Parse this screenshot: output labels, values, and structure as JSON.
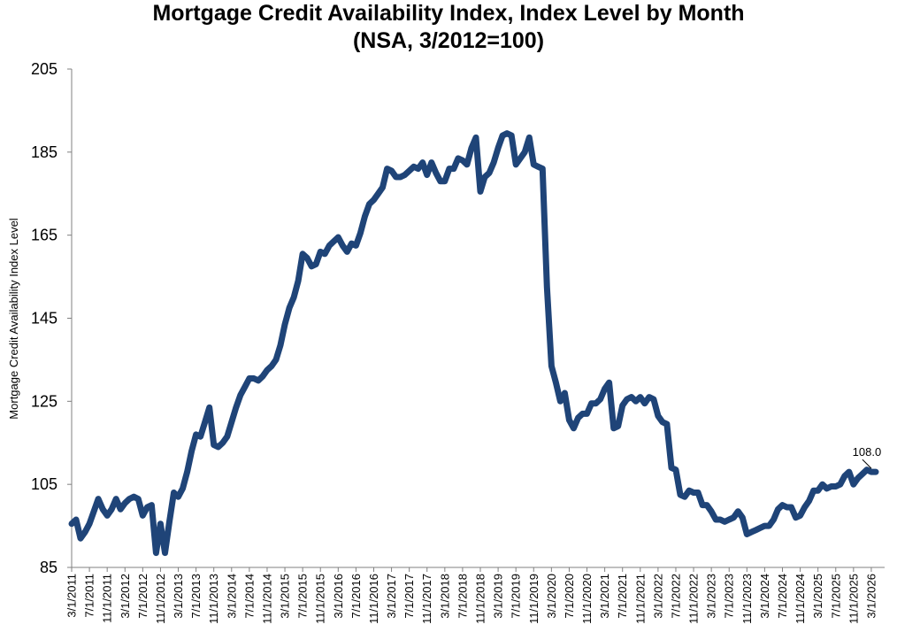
{
  "chart_data": {
    "type": "line",
    "title": "Mortgage Credit Availability Index, Index Level by Month",
    "subtitle": "(NSA, 3/2012=100)",
    "ylabel": "Mortgage Credit Availability Index Level",
    "xlabel": "",
    "ylim": [
      85,
      205
    ],
    "yticks": [
      "85",
      "105",
      "125",
      "145",
      "165",
      "185",
      "205"
    ],
    "grid": false,
    "legend": "none",
    "line_color": "#1f4478",
    "xlim": [
      "2011-03",
      "2026-06"
    ],
    "x_tick_labels": [
      "3/1/2011",
      "7/1/2011",
      "11/1/2011",
      "3/1/2012",
      "7/1/2012",
      "11/1/2012",
      "3/1/2013",
      "7/1/2013",
      "11/1/2013",
      "3/1/2014",
      "7/1/2014",
      "11/1/2014",
      "3/1/2015",
      "7/1/2015",
      "11/1/2015",
      "3/1/2016",
      "7/1/2016",
      "11/1/2016",
      "3/1/2017",
      "7/1/2017",
      "11/1/2017",
      "3/1/2018",
      "7/1/2018",
      "11/1/2018",
      "3/1/2019",
      "7/1/2019",
      "11/1/2019",
      "3/1/2020",
      "7/1/2020",
      "11/1/2020",
      "3/1/2021",
      "7/1/2021",
      "11/1/2021",
      "3/1/2022",
      "7/1/2022",
      "11/1/2022",
      "3/1/2023",
      "7/1/2023",
      "11/1/2023",
      "3/1/2024",
      "7/1/2024",
      "11/1/2024",
      "3/1/2025",
      "7/1/2025",
      "11/1/2025",
      "3/1/2026"
    ],
    "x_tick_dates": [
      "2011-03",
      "2011-07",
      "2011-11",
      "2012-03",
      "2012-07",
      "2012-11",
      "2013-03",
      "2013-07",
      "2013-11",
      "2014-03",
      "2014-07",
      "2014-11",
      "2015-03",
      "2015-07",
      "2015-11",
      "2016-03",
      "2016-07",
      "2016-11",
      "2017-03",
      "2017-07",
      "2017-11",
      "2018-03",
      "2018-07",
      "2018-11",
      "2019-03",
      "2019-07",
      "2019-11",
      "2020-03",
      "2020-07",
      "2020-11",
      "2021-03",
      "2021-07",
      "2021-11",
      "2022-03",
      "2022-07",
      "2022-11",
      "2023-03",
      "2023-07",
      "2023-11",
      "2024-03",
      "2024-07",
      "2024-11",
      "2025-03",
      "2025-07",
      "2025-11",
      "2026-03"
    ],
    "series": [
      {
        "points": [
          [
            "2011-03",
            95.5
          ],
          [
            "2011-04",
            96.5
          ],
          [
            "2011-05",
            92.0
          ],
          [
            "2011-06",
            93.5
          ],
          [
            "2011-07",
            95.5
          ],
          [
            "2011-08",
            98.5
          ],
          [
            "2011-09",
            101.5
          ],
          [
            "2011-10",
            99.0
          ],
          [
            "2011-11",
            97.5
          ],
          [
            "2011-12",
            99.0
          ],
          [
            "2012-01",
            101.5
          ],
          [
            "2012-02",
            99.0
          ],
          [
            "2012-03",
            100.5
          ],
          [
            "2012-04",
            101.5
          ],
          [
            "2012-05",
            102.0
          ],
          [
            "2012-06",
            101.5
          ],
          [
            "2012-07",
            97.5
          ],
          [
            "2012-08",
            99.5
          ],
          [
            "2012-09",
            100.0
          ],
          [
            "2012-10",
            88.5
          ],
          [
            "2012-11",
            95.5
          ],
          [
            "2012-12",
            88.5
          ],
          [
            "2013-01",
            96.0
          ],
          [
            "2013-02",
            103.0
          ],
          [
            "2013-03",
            102.0
          ],
          [
            "2013-04",
            104.0
          ],
          [
            "2013-05",
            108.0
          ],
          [
            "2013-06",
            113.0
          ],
          [
            "2013-07",
            117.0
          ],
          [
            "2013-08",
            116.5
          ],
          [
            "2013-09",
            120.0
          ],
          [
            "2013-10",
            123.5
          ],
          [
            "2013-11",
            114.5
          ],
          [
            "2013-12",
            114.0
          ],
          [
            "2014-01",
            115.0
          ],
          [
            "2014-02",
            116.5
          ],
          [
            "2014-03",
            120.0
          ],
          [
            "2014-04",
            123.5
          ],
          [
            "2014-05",
            126.5
          ],
          [
            "2014-06",
            128.5
          ],
          [
            "2014-07",
            130.5
          ],
          [
            "2014-08",
            130.5
          ],
          [
            "2014-09",
            130.0
          ],
          [
            "2014-10",
            131.0
          ],
          [
            "2014-11",
            132.5
          ],
          [
            "2014-12",
            133.5
          ],
          [
            "2015-01",
            135.0
          ],
          [
            "2015-02",
            138.5
          ],
          [
            "2015-03",
            143.5
          ],
          [
            "2015-04",
            147.5
          ],
          [
            "2015-05",
            150.0
          ],
          [
            "2015-06",
            154.0
          ],
          [
            "2015-07",
            160.5
          ],
          [
            "2015-08",
            159.5
          ],
          [
            "2015-09",
            157.5
          ],
          [
            "2015-10",
            158.0
          ],
          [
            "2015-11",
            161.0
          ],
          [
            "2015-12",
            160.5
          ],
          [
            "2016-01",
            162.5
          ],
          [
            "2016-02",
            163.5
          ],
          [
            "2016-03",
            164.5
          ],
          [
            "2016-04",
            162.5
          ],
          [
            "2016-05",
            161.0
          ],
          [
            "2016-06",
            163.0
          ],
          [
            "2016-07",
            162.5
          ],
          [
            "2016-08",
            165.5
          ],
          [
            "2016-09",
            169.5
          ],
          [
            "2016-10",
            172.5
          ],
          [
            "2016-11",
            173.5
          ],
          [
            "2016-12",
            175.0
          ],
          [
            "2017-01",
            176.5
          ],
          [
            "2017-02",
            181.0
          ],
          [
            "2017-03",
            180.5
          ],
          [
            "2017-04",
            179.0
          ],
          [
            "2017-05",
            179.0
          ],
          [
            "2017-06",
            179.5
          ],
          [
            "2017-07",
            180.5
          ],
          [
            "2017-08",
            181.5
          ],
          [
            "2017-09",
            181.0
          ],
          [
            "2017-10",
            182.5
          ],
          [
            "2017-11",
            179.5
          ],
          [
            "2017-12",
            182.5
          ],
          [
            "2018-01",
            180.0
          ],
          [
            "2018-02",
            178.0
          ],
          [
            "2018-03",
            178.0
          ],
          [
            "2018-04",
            181.0
          ],
          [
            "2018-05",
            181.0
          ],
          [
            "2018-06",
            183.5
          ],
          [
            "2018-07",
            183.0
          ],
          [
            "2018-08",
            182.0
          ],
          [
            "2018-09",
            186.0
          ],
          [
            "2018-10",
            188.5
          ],
          [
            "2018-11",
            175.5
          ],
          [
            "2018-12",
            179.0
          ],
          [
            "2019-01",
            180.0
          ],
          [
            "2019-02",
            182.5
          ],
          [
            "2019-03",
            186.0
          ],
          [
            "2019-04",
            189.0
          ],
          [
            "2019-05",
            189.5
          ],
          [
            "2019-06",
            189.0
          ],
          [
            "2019-07",
            182.0
          ],
          [
            "2019-08",
            183.5
          ],
          [
            "2019-09",
            185.0
          ],
          [
            "2019-10",
            188.5
          ],
          [
            "2019-11",
            182.0
          ],
          [
            "2019-12",
            181.5
          ],
          [
            "2020-01",
            181.0
          ],
          [
            "2020-02",
            152.5
          ],
          [
            "2020-03",
            133.5
          ],
          [
            "2020-04",
            129.5
          ],
          [
            "2020-05",
            125.0
          ],
          [
            "2020-06",
            127.0
          ],
          [
            "2020-07",
            120.5
          ],
          [
            "2020-08",
            118.5
          ],
          [
            "2020-09",
            121.0
          ],
          [
            "2020-10",
            122.0
          ],
          [
            "2020-11",
            122.0
          ],
          [
            "2020-12",
            124.5
          ],
          [
            "2021-01",
            124.5
          ],
          [
            "2021-02",
            125.5
          ],
          [
            "2021-03",
            128.0
          ],
          [
            "2021-04",
            129.5
          ],
          [
            "2021-05",
            118.5
          ],
          [
            "2021-06",
            119.0
          ],
          [
            "2021-07",
            124.0
          ],
          [
            "2021-08",
            125.5
          ],
          [
            "2021-09",
            126.0
          ],
          [
            "2021-10",
            125.0
          ],
          [
            "2021-11",
            126.0
          ],
          [
            "2021-12",
            124.5
          ],
          [
            "2022-01",
            126.0
          ],
          [
            "2022-02",
            125.5
          ],
          [
            "2022-03",
            121.5
          ],
          [
            "2022-04",
            120.0
          ],
          [
            "2022-05",
            119.5
          ],
          [
            "2022-06",
            109.0
          ],
          [
            "2022-07",
            108.5
          ],
          [
            "2022-08",
            102.5
          ],
          [
            "2022-09",
            102.0
          ],
          [
            "2022-10",
            103.5
          ],
          [
            "2022-11",
            103.0
          ],
          [
            "2022-12",
            103.0
          ],
          [
            "2023-01",
            100.0
          ],
          [
            "2023-02",
            100.0
          ],
          [
            "2023-03",
            98.5
          ],
          [
            "2023-04",
            96.5
          ],
          [
            "2023-05",
            96.5
          ],
          [
            "2023-06",
            96.0
          ],
          [
            "2023-07",
            96.5
          ],
          [
            "2023-08",
            97.0
          ],
          [
            "2023-09",
            98.5
          ],
          [
            "2023-10",
            97.0
          ],
          [
            "2023-11",
            93.0
          ],
          [
            "2023-12",
            93.5
          ],
          [
            "2024-01",
            94.0
          ],
          [
            "2024-02",
            94.5
          ],
          [
            "2024-03",
            95.0
          ],
          [
            "2024-04",
            95.0
          ],
          [
            "2024-05",
            96.5
          ],
          [
            "2024-06",
            99.0
          ],
          [
            "2024-07",
            100.0
          ],
          [
            "2024-08",
            99.5
          ],
          [
            "2024-09",
            99.5
          ],
          [
            "2024-10",
            97.0
          ],
          [
            "2024-11",
            97.5
          ],
          [
            "2024-12",
            99.5
          ],
          [
            "2025-01",
            101.0
          ],
          [
            "2025-02",
            103.5
          ],
          [
            "2025-03",
            103.5
          ],
          [
            "2025-04",
            105.0
          ],
          [
            "2025-05",
            104.0
          ],
          [
            "2025-06",
            104.5
          ],
          [
            "2025-07",
            104.5
          ],
          [
            "2025-08",
            105.0
          ],
          [
            "2025-09",
            107.0
          ],
          [
            "2025-10",
            108.0
          ],
          [
            "2025-11",
            105.0
          ],
          [
            "2025-12",
            106.5
          ],
          [
            "2026-01",
            107.5
          ],
          [
            "2026-02",
            108.5
          ],
          [
            "2026-03",
            108.0
          ],
          [
            "2026-04",
            108.0
          ]
        ]
      }
    ],
    "annotations": [
      {
        "text": "108.0",
        "x": "2026-03",
        "y": 108.0
      }
    ]
  }
}
